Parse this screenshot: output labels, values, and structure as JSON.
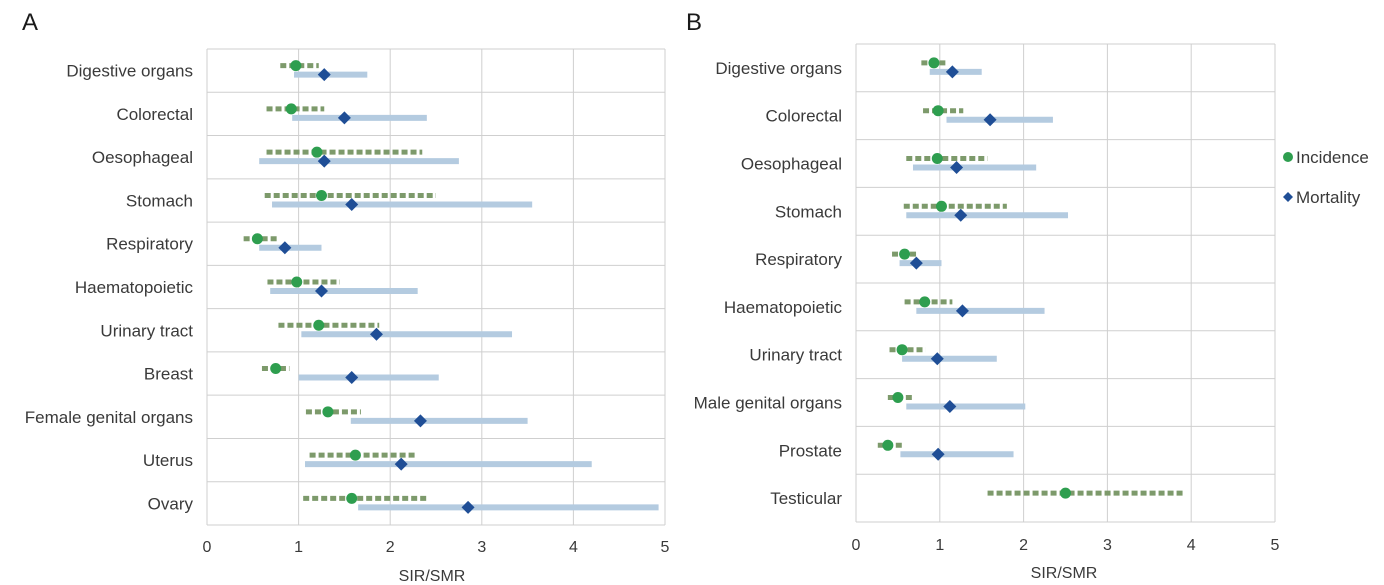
{
  "chart_data": [
    {
      "type": "forest",
      "panel_label": "A",
      "xlabel": "SIR/SMR",
      "xlim": [
        0,
        5
      ],
      "x_ticks": [
        0,
        1,
        2,
        3,
        4,
        5
      ],
      "grid": true,
      "categories": [
        "Digestive organs",
        "Colorectal",
        "Oesophageal",
        "Stomach",
        "Respiratory",
        "Haematopoietic",
        "Urinary tract",
        "Breast",
        "Female genital organs",
        "Uterus",
        "Ovary"
      ],
      "series": [
        {
          "name": "Incidence",
          "marker": "circle",
          "color": "#2e9e4f",
          "ci_color": "#7d9a6b",
          "ci_style": "dashed",
          "values": [
            0.97,
            0.92,
            1.2,
            1.25,
            0.55,
            0.98,
            1.22,
            0.75,
            1.32,
            1.62,
            1.58
          ],
          "ci": [
            [
              0.8,
              1.22
            ],
            [
              0.65,
              1.28
            ],
            [
              0.65,
              2.35
            ],
            [
              0.63,
              2.5
            ],
            [
              0.4,
              0.78
            ],
            [
              0.66,
              1.45
            ],
            [
              0.78,
              1.88
            ],
            [
              0.6,
              0.9
            ],
            [
              1.08,
              1.68
            ],
            [
              1.12,
              2.28
            ],
            [
              1.05,
              2.42
            ]
          ]
        },
        {
          "name": "Mortality",
          "marker": "diamond",
          "color": "#1f4e96",
          "ci_color": "#b4cbe0",
          "ci_style": "solid",
          "values": [
            1.28,
            1.5,
            1.28,
            1.58,
            0.85,
            1.25,
            1.85,
            1.58,
            2.33,
            2.12,
            2.85
          ],
          "ci": [
            [
              0.95,
              1.75
            ],
            [
              0.93,
              2.4
            ],
            [
              0.57,
              2.75
            ],
            [
              0.71,
              3.55
            ],
            [
              0.57,
              1.25
            ],
            [
              0.69,
              2.3
            ],
            [
              1.03,
              3.33
            ],
            [
              1.0,
              2.53
            ],
            [
              1.57,
              3.5
            ],
            [
              1.07,
              4.2
            ],
            [
              1.65,
              4.93
            ]
          ]
        }
      ]
    },
    {
      "type": "forest",
      "panel_label": "B",
      "xlabel": "SIR/SMR",
      "xlim": [
        0,
        5
      ],
      "x_ticks": [
        0,
        1,
        2,
        3,
        4,
        5
      ],
      "grid": true,
      "categories": [
        "Digestive organs",
        "Colorectal",
        "Oesophageal",
        "Stomach",
        "Respiratory",
        "Haematopoietic",
        "Urinary tract",
        "Male genital organs",
        "Prostate",
        "Testicular"
      ],
      "series": [
        {
          "name": "Incidence",
          "marker": "circle",
          "color": "#2e9e4f",
          "ci_color": "#7d9a6b",
          "ci_style": "dashed",
          "values": [
            0.93,
            0.98,
            0.97,
            1.02,
            0.58,
            0.82,
            0.55,
            0.5,
            0.38,
            2.5
          ],
          "ci": [
            [
              0.78,
              1.1
            ],
            [
              0.8,
              1.28
            ],
            [
              0.6,
              1.57
            ],
            [
              0.57,
              1.8
            ],
            [
              0.43,
              0.75
            ],
            [
              0.58,
              1.15
            ],
            [
              0.4,
              0.83
            ],
            [
              0.38,
              0.67
            ],
            [
              0.26,
              0.55
            ],
            [
              1.57,
              3.93
            ]
          ]
        },
        {
          "name": "Mortality",
          "marker": "diamond",
          "color": "#1f4e96",
          "ci_color": "#b4cbe0",
          "ci_style": "solid",
          "values": [
            1.15,
            1.6,
            1.2,
            1.25,
            0.72,
            1.27,
            0.97,
            1.12,
            0.98,
            null
          ],
          "ci": [
            [
              0.88,
              1.5
            ],
            [
              1.08,
              2.35
            ],
            [
              0.68,
              2.15
            ],
            [
              0.6,
              2.53
            ],
            [
              0.52,
              1.02
            ],
            [
              0.72,
              2.25
            ],
            [
              0.55,
              1.68
            ],
            [
              0.6,
              2.02
            ],
            [
              0.53,
              1.88
            ],
            null
          ]
        }
      ],
      "legend": {
        "placement": "right",
        "entries": [
          {
            "label": "Incidence",
            "marker": "circle",
            "color": "#2e9e4f"
          },
          {
            "label": "Mortality",
            "marker": "diamond",
            "color": "#1f4e96"
          }
        ]
      }
    }
  ]
}
